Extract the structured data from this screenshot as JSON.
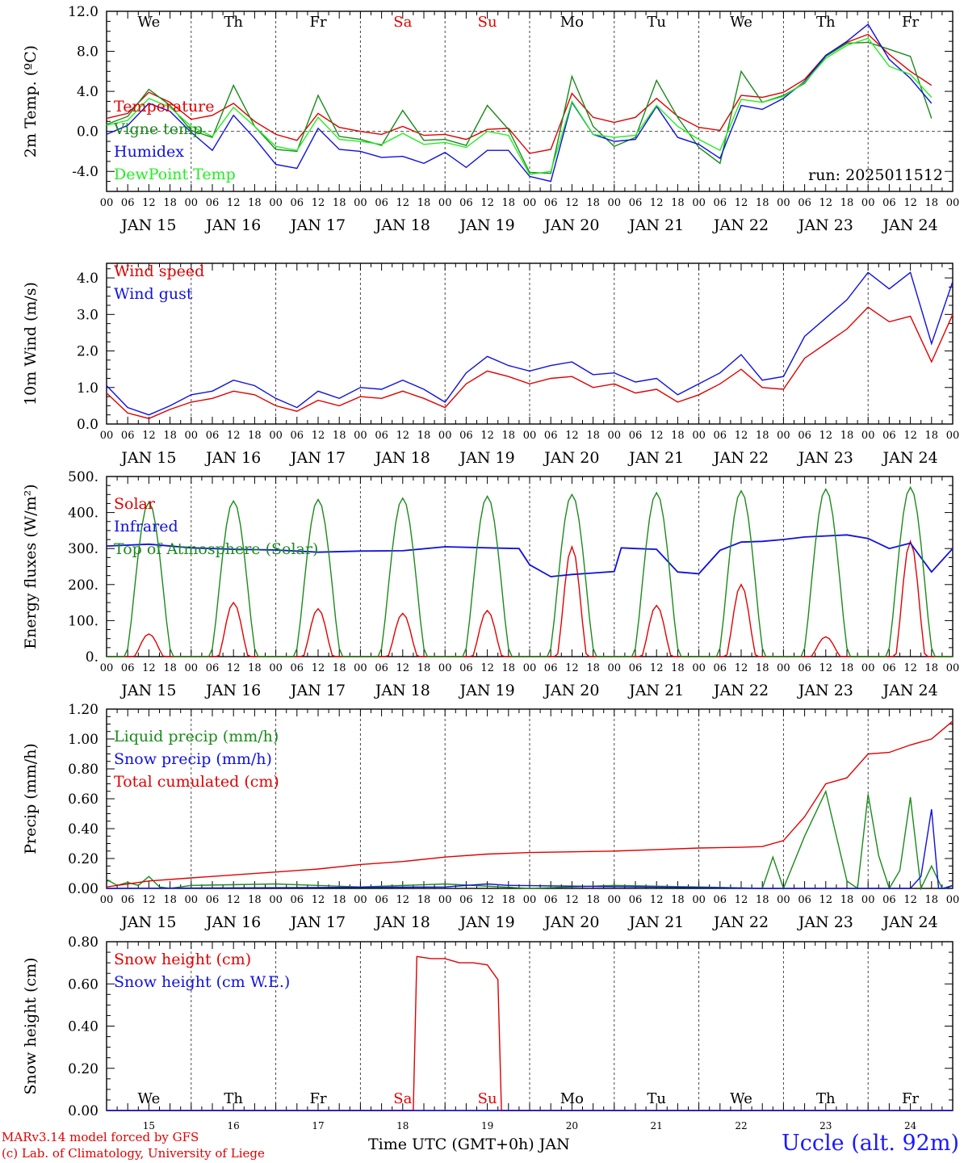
{
  "colors": {
    "red": "#e00000",
    "green": "#1a8a1a",
    "blue": "#1010e0",
    "lime": "#22ee22",
    "axis": "#000000"
  },
  "time_axis": {
    "hour_ticks": [
      "00",
      "06",
      "12",
      "18"
    ],
    "end_tick": "00",
    "date_labels": [
      "JAN 15",
      "JAN 16",
      "JAN 17",
      "JAN 18",
      "JAN 19",
      "JAN 20",
      "JAN 21",
      "JAN 22",
      "JAN 23",
      "JAN 24"
    ],
    "weekdays": [
      "We",
      "Th",
      "Fr",
      "Sa",
      "Su",
      "Mo",
      "Tu",
      "We",
      "Th",
      "Fr"
    ],
    "weekend_flags": [
      false,
      false,
      false,
      true,
      true,
      false,
      false,
      false,
      false,
      false
    ],
    "day_numbers": [
      "15",
      "16",
      "17",
      "18",
      "19",
      "20",
      "21",
      "22",
      "23",
      "24"
    ],
    "xlabel": "Time UTC (GMT+0h) JAN"
  },
  "footer": {
    "model_line": "MARv3.14 model forced by GFS",
    "credit_line": "(c) Lab. of Climatology, University of Liege",
    "station": "Uccle (alt. 92m)"
  },
  "chart_data": [
    {
      "type": "line",
      "ylabel": "2m Temp. (ºC)",
      "ylim": [
        -6,
        12
      ],
      "yticks": [
        -4,
        0,
        4,
        8,
        12
      ],
      "ytick_labels": [
        "-4.0",
        "0.0",
        "4.0",
        "8.0",
        "12.0"
      ],
      "zero_line": true,
      "annotation": "run: 2025011512",
      "x_unit": "hours since JAN 15 00 UTC",
      "series": [
        {
          "name": "Temperature",
          "color": "red",
          "x": [
            0,
            6,
            12,
            18,
            24,
            30,
            36,
            42,
            48,
            54,
            60,
            66,
            72,
            78,
            84,
            90,
            96,
            102,
            108,
            114,
            120,
            126,
            132,
            138,
            144,
            150,
            156,
            162,
            168,
            174,
            180,
            186,
            192,
            198,
            204,
            210,
            216,
            222,
            228,
            234
          ],
          "values": [
            1.3,
            1.8,
            3.9,
            2.9,
            1.2,
            1.6,
            2.8,
            1.0,
            -0.3,
            -0.9,
            1.8,
            0.4,
            0.0,
            -0.3,
            0.5,
            -0.4,
            -0.3,
            -0.8,
            0.2,
            0.3,
            -2.2,
            -1.8,
            3.8,
            1.4,
            0.9,
            1.4,
            3.3,
            1.5,
            0.4,
            0.1,
            3.6,
            3.4,
            3.9,
            5.2,
            7.6,
            8.9,
            9.7,
            7.7,
            6.0,
            4.6
          ]
        },
        {
          "name": "Vigne temp",
          "color": "green",
          "x": [
            0,
            6,
            12,
            18,
            24,
            30,
            36,
            42,
            48,
            54,
            60,
            66,
            72,
            78,
            84,
            90,
            96,
            102,
            108,
            114,
            120,
            126,
            132,
            138,
            144,
            150,
            156,
            162,
            168,
            174,
            180,
            186,
            192,
            198,
            204,
            210,
            216,
            222,
            228,
            234
          ],
          "values": [
            0.7,
            1.5,
            4.2,
            2.6,
            0.1,
            -0.6,
            4.6,
            0.5,
            -1.8,
            -2.0,
            3.6,
            -0.5,
            -0.8,
            -1.4,
            2.1,
            -0.9,
            -0.8,
            -1.4,
            2.6,
            0.2,
            -4.1,
            -4.2,
            5.5,
            0.5,
            -1.5,
            -0.6,
            5.1,
            1.4,
            -1.6,
            -3.2,
            6.0,
            2.9,
            3.6,
            4.8,
            7.5,
            8.8,
            8.9,
            8.2,
            7.5,
            1.3
          ]
        },
        {
          "name": "Humidex",
          "color": "blue",
          "x": [
            0,
            6,
            12,
            18,
            24,
            30,
            36,
            42,
            48,
            54,
            60,
            66,
            72,
            78,
            84,
            90,
            96,
            102,
            108,
            114,
            120,
            126,
            132,
            138,
            144,
            150,
            156,
            162,
            168,
            174,
            180,
            186,
            192,
            198,
            204,
            210,
            216,
            222,
            228,
            234
          ],
          "values": [
            -0.3,
            0.6,
            2.8,
            2.0,
            -0.1,
            -1.9,
            1.6,
            -0.7,
            -3.3,
            -3.7,
            0.3,
            -1.8,
            -2.0,
            -2.6,
            -2.5,
            -3.2,
            -2.1,
            -3.6,
            -1.9,
            -1.9,
            -4.5,
            -5.0,
            2.9,
            -0.3,
            -1.0,
            -0.8,
            2.5,
            -0.6,
            -1.3,
            -2.7,
            2.6,
            2.2,
            3.3,
            5.0,
            7.6,
            9.0,
            10.7,
            7.2,
            5.3,
            2.8
          ]
        },
        {
          "name": "DewPoint Temp",
          "color": "lime",
          "x": [
            0,
            6,
            12,
            18,
            24,
            30,
            36,
            42,
            48,
            54,
            60,
            66,
            72,
            78,
            84,
            90,
            96,
            102,
            108,
            114,
            120,
            126,
            132,
            138,
            144,
            150,
            156,
            162,
            168,
            174,
            180,
            186,
            192,
            198,
            204,
            210,
            216,
            222,
            228,
            234
          ],
          "values": [
            0.6,
            1.1,
            3.3,
            2.4,
            0.5,
            -0.5,
            2.4,
            0.5,
            -1.5,
            -1.9,
            1.4,
            -0.8,
            -1.0,
            -1.3,
            -0.2,
            -1.3,
            -1.1,
            -1.6,
            0.0,
            -0.4,
            -4.3,
            -4.0,
            3.0,
            -0.3,
            -0.6,
            -0.4,
            2.6,
            0.5,
            -0.8,
            -1.9,
            3.2,
            2.9,
            3.5,
            4.9,
            7.3,
            8.6,
            9.3,
            6.5,
            5.7,
            3.4
          ]
        }
      ]
    },
    {
      "type": "line",
      "ylabel": "10m Wind (m/s)",
      "ylim": [
        0,
        4.4
      ],
      "yticks": [
        0,
        1,
        2,
        3,
        4
      ],
      "ytick_labels": [
        "0.0",
        "1.0",
        "2.0",
        "3.0",
        "4.0"
      ],
      "x_unit": "hours since JAN 15 00 UTC",
      "series": [
        {
          "name": "Wind speed",
          "color": "red",
          "x": [
            0,
            6,
            12,
            18,
            24,
            30,
            36,
            42,
            48,
            54,
            60,
            66,
            72,
            78,
            84,
            90,
            96,
            102,
            108,
            114,
            120,
            126,
            132,
            138,
            144,
            150,
            156,
            162,
            168,
            174,
            180,
            186,
            192,
            198,
            204,
            210,
            216,
            222,
            228,
            234,
            240
          ],
          "values": [
            0.85,
            0.3,
            0.15,
            0.4,
            0.6,
            0.7,
            0.9,
            0.8,
            0.5,
            0.35,
            0.65,
            0.5,
            0.75,
            0.7,
            0.9,
            0.7,
            0.45,
            1.1,
            1.45,
            1.3,
            1.1,
            1.25,
            1.3,
            1.0,
            1.1,
            0.85,
            0.95,
            0.6,
            0.8,
            1.1,
            1.5,
            1.0,
            0.95,
            1.8,
            2.2,
            2.6,
            3.2,
            2.8,
            2.95,
            1.7,
            3.0
          ]
        },
        {
          "name": "Wind gust",
          "color": "blue",
          "x": [
            0,
            6,
            12,
            18,
            24,
            30,
            36,
            42,
            48,
            54,
            60,
            66,
            72,
            78,
            84,
            90,
            96,
            102,
            108,
            114,
            120,
            126,
            132,
            138,
            144,
            150,
            156,
            162,
            168,
            174,
            180,
            186,
            192,
            198,
            204,
            210,
            216,
            222,
            228,
            234,
            240
          ],
          "values": [
            1.05,
            0.45,
            0.25,
            0.5,
            0.8,
            0.9,
            1.2,
            1.05,
            0.7,
            0.45,
            0.9,
            0.7,
            1.0,
            0.95,
            1.2,
            0.95,
            0.6,
            1.4,
            1.85,
            1.6,
            1.45,
            1.6,
            1.7,
            1.35,
            1.4,
            1.15,
            1.25,
            0.8,
            1.1,
            1.4,
            1.9,
            1.2,
            1.3,
            2.4,
            2.9,
            3.4,
            4.15,
            3.7,
            4.15,
            2.2,
            3.9
          ]
        }
      ]
    },
    {
      "type": "line",
      "ylabel": "Energy fluxes (W/m²)",
      "ylim": [
        0,
        500
      ],
      "yticks": [
        0,
        100,
        200,
        300,
        400,
        500
      ],
      "ytick_labels": [
        "0.",
        "100.",
        "200.",
        "300.",
        "400.",
        "500."
      ],
      "x_unit": "hours since JAN 15 00 UTC",
      "series": [
        {
          "name": "Solar",
          "color": "red",
          "daily_peaks_wm2": [
            63,
            150,
            133,
            120,
            128,
            305,
            142,
            200,
            55,
            320
          ]
        },
        {
          "name": "Infrared",
          "color": "blue",
          "x": [
            0,
            12,
            24,
            36,
            48,
            60,
            72,
            84,
            96,
            108,
            117,
            120,
            126,
            132,
            138,
            144,
            146,
            150,
            156,
            162,
            168,
            174,
            180,
            186,
            192,
            198,
            204,
            210,
            216,
            222,
            228,
            234,
            240
          ],
          "values": [
            307,
            312,
            302,
            298,
            296,
            290,
            293,
            294,
            305,
            302,
            300,
            255,
            222,
            228,
            232,
            236,
            302,
            300,
            298,
            235,
            230,
            295,
            318,
            320,
            325,
            332,
            335,
            338,
            328,
            300,
            315,
            235,
            300
          ]
        },
        {
          "name": "Top of Atmosphere (Solar)",
          "color": "green",
          "daily_peaks_wm2": [
            428,
            432,
            436,
            440,
            445,
            450,
            455,
            460,
            465,
            470
          ]
        }
      ]
    },
    {
      "type": "line",
      "ylabel": "Precip (mm/h)",
      "ylim": [
        0,
        1.2
      ],
      "yticks": [
        0,
        0.2,
        0.4,
        0.6,
        0.8,
        1.0,
        1.2
      ],
      "ytick_labels": [
        "0.00",
        "0.20",
        "0.40",
        "0.60",
        "0.80",
        "1.00",
        "1.20"
      ],
      "x_unit": "hours since JAN 15 00 UTC",
      "series": [
        {
          "name": "Liquid precip (mm/h)",
          "color": "green",
          "x": [
            0,
            3,
            6,
            9,
            12,
            15,
            18,
            24,
            48,
            72,
            96,
            120,
            144,
            168,
            186,
            189,
            192,
            198,
            204,
            210,
            213,
            216,
            219,
            222,
            225,
            228,
            231,
            234,
            237,
            240
          ],
          "values": [
            0.06,
            0.02,
            0.04,
            0.02,
            0.08,
            0.01,
            0.0,
            0.02,
            0.03,
            0.01,
            0.03,
            0.0,
            0.02,
            0.01,
            0.0,
            0.21,
            0.0,
            0.35,
            0.65,
            0.05,
            0.0,
            0.63,
            0.22,
            0.0,
            0.12,
            0.61,
            0.0,
            0.15,
            0.0,
            0.02
          ]
        },
        {
          "name": "Snow precip (mm/h)",
          "color": "blue",
          "x": [
            0,
            96,
            108,
            114,
            186,
            228,
            231,
            234,
            236,
            238,
            240
          ],
          "values": [
            0.0,
            0.01,
            0.03,
            0.02,
            0.0,
            0.0,
            0.08,
            0.53,
            0.0,
            0.0,
            0.02
          ]
        },
        {
          "name": "Total cumulated (cm)",
          "color": "red",
          "x": [
            0,
            12,
            24,
            36,
            48,
            60,
            72,
            84,
            96,
            108,
            120,
            132,
            144,
            156,
            168,
            180,
            186,
            192,
            198,
            204,
            210,
            216,
            222,
            228,
            234,
            240
          ],
          "values": [
            0.01,
            0.05,
            0.07,
            0.09,
            0.11,
            0.13,
            0.16,
            0.18,
            0.21,
            0.23,
            0.24,
            0.245,
            0.25,
            0.26,
            0.27,
            0.275,
            0.28,
            0.32,
            0.48,
            0.7,
            0.74,
            0.9,
            0.91,
            0.96,
            1.0,
            1.12
          ]
        }
      ]
    },
    {
      "type": "line",
      "ylabel": "Snow height (cm)",
      "ylim": [
        0,
        0.8
      ],
      "yticks": [
        0,
        0.2,
        0.4,
        0.6,
        0.8
      ],
      "ytick_labels": [
        "0.00",
        "0.20",
        "0.40",
        "0.60",
        "0.80"
      ],
      "x_unit": "hours since JAN 15 00 UTC",
      "series": [
        {
          "name": "Snow height (cm)",
          "color": "red",
          "x": [
            0,
            87,
            88,
            92,
            96,
            100,
            104,
            108,
            111,
            112,
            240
          ],
          "values": [
            0,
            0,
            0.73,
            0.72,
            0.72,
            0.7,
            0.7,
            0.69,
            0.62,
            0,
            0
          ]
        },
        {
          "name": "Snow height (cm W.E.)",
          "color": "blue",
          "x": [
            0,
            240
          ],
          "values": [
            0,
            0
          ]
        }
      ]
    }
  ]
}
